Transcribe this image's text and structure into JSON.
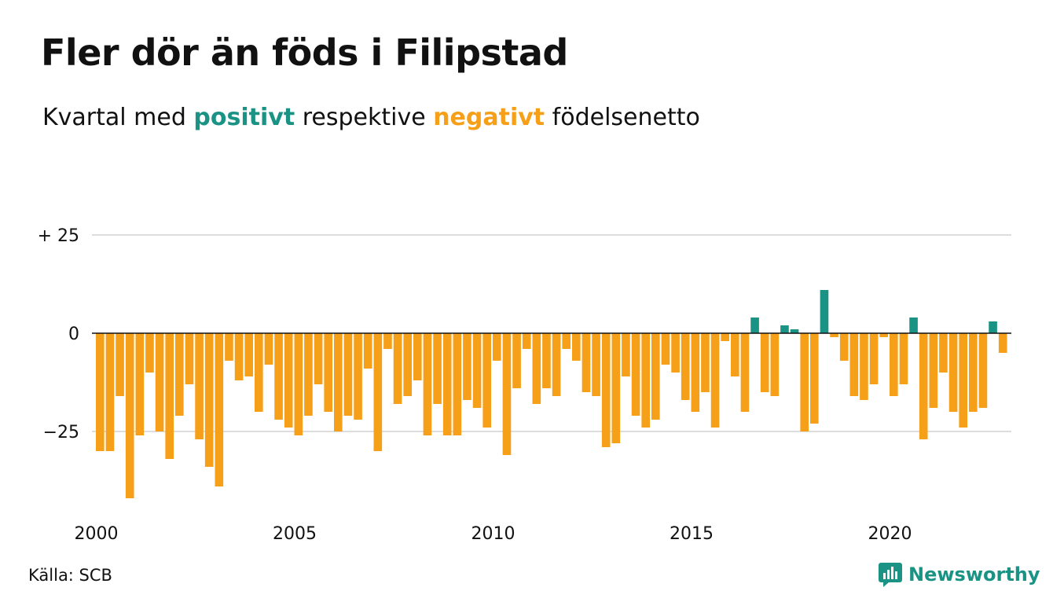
{
  "title": "Fler dör än föds i Filipstad",
  "subtitle": {
    "part1": "Kvartal med ",
    "positive": "positivt",
    "part2": " respektive ",
    "negative": "negativt",
    "part3": " födelsenetto"
  },
  "source": "Källa: SCB",
  "logo_text": "Newsworthy",
  "colors": {
    "positive": "#1a9384",
    "negative": "#f6a01a",
    "grid": "#dddddd",
    "zero_line": "#111111"
  },
  "chart_data": {
    "type": "bar",
    "x_start": 2000.0,
    "x_step": 0.25,
    "values": [
      -30,
      -30,
      -16,
      -42,
      -26,
      -10,
      -25,
      -32,
      -21,
      -13,
      -27,
      -34,
      -39,
      -7,
      -12,
      -11,
      -20,
      -8,
      -22,
      -24,
      -26,
      -21,
      -13,
      -20,
      -25,
      -21,
      -22,
      -9,
      -30,
      -4,
      -18,
      -16,
      -12,
      -26,
      -18,
      -26,
      -26,
      -17,
      -19,
      -24,
      -7,
      -31,
      -14,
      -4,
      -18,
      -14,
      -16,
      -4,
      -7,
      -15,
      -16,
      -29,
      -28,
      -11,
      -21,
      -24,
      -22,
      -8,
      -10,
      -17,
      -20,
      -15,
      -24,
      -2,
      -11,
      -20,
      4,
      -15,
      -16,
      2,
      1,
      -25,
      -23,
      11,
      -1,
      -7,
      -16,
      -17,
      -13,
      -1,
      -16,
      -13,
      4,
      -27,
      -19,
      -10,
      -20,
      -24,
      -20,
      -19,
      3,
      -5
    ],
    "ylim": [
      -43,
      27
    ],
    "y_ticks": [
      {
        "value": 25,
        "label": "+ 25"
      },
      {
        "value": 0,
        "label": "0"
      },
      {
        "value": -25,
        "label": "−25"
      }
    ],
    "x_ticks": [
      "2000",
      "2005",
      "2010",
      "2015",
      "2020"
    ],
    "grid": true
  }
}
